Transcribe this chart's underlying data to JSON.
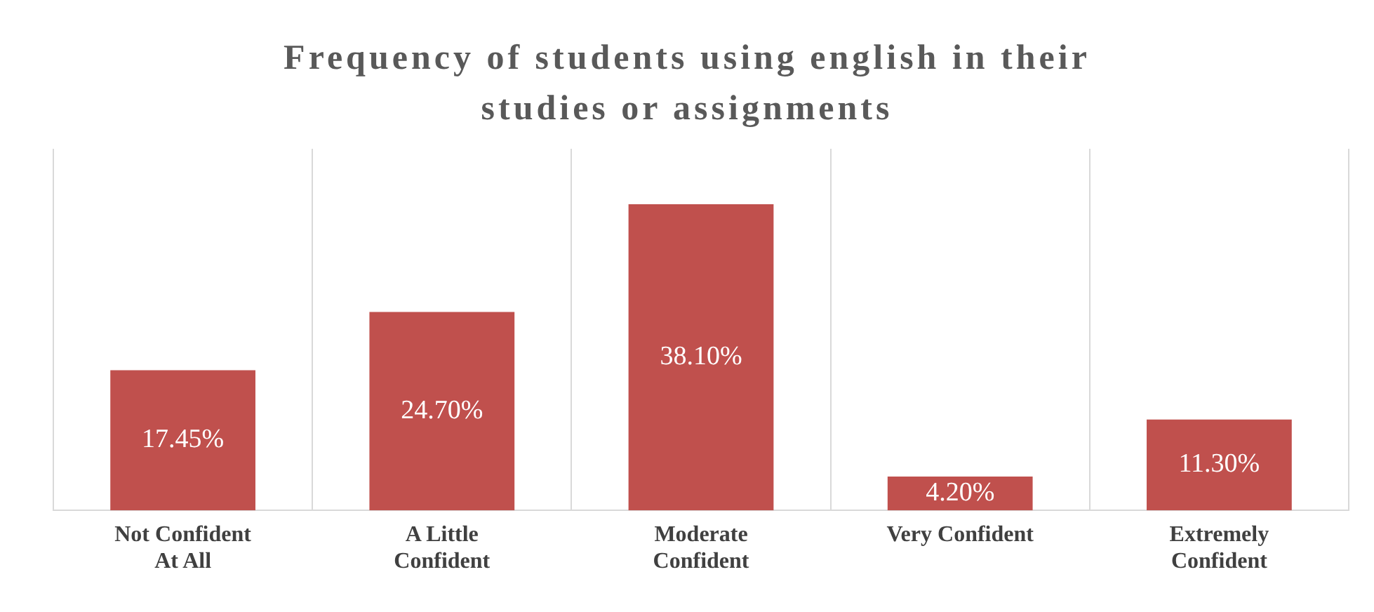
{
  "chart_data": {
    "type": "bar",
    "title": "Frequency of students using english in their studies or assignments",
    "categories": [
      "Not Confident At All",
      "A Little Confident",
      "Moderate Confident",
      "Very Confident",
      "Extremely Confident"
    ],
    "values": [
      17.45,
      24.7,
      38.1,
      4.2,
      11.3
    ],
    "value_labels": [
      "17.45%",
      "24.70%",
      "38.10%",
      "4.20%",
      "11.30%"
    ],
    "color": "#c0504d",
    "tick_labels": "x",
    "grid": "x",
    "legend": false
  }
}
